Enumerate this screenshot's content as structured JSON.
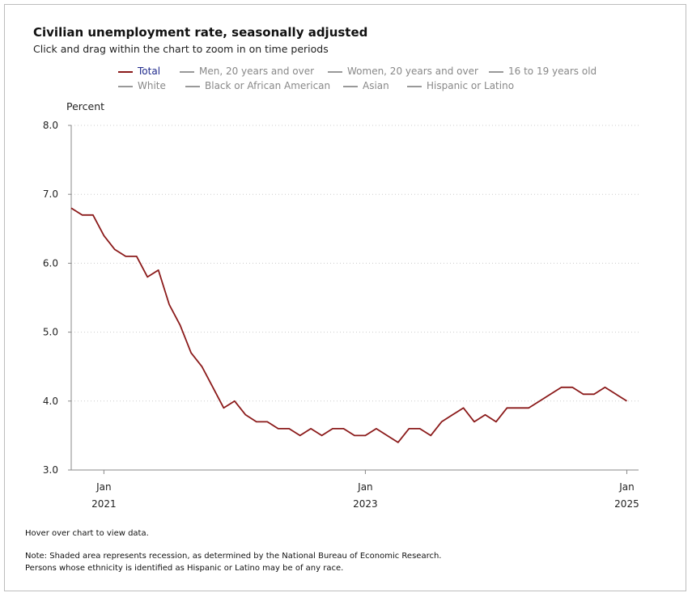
{
  "header": {
    "title": "Civilian unemployment rate, seasonally adjusted",
    "subtitle": "Click and drag within the chart to zoom in on time periods"
  },
  "legend": [
    {
      "label": "Total",
      "active": true
    },
    {
      "label": "Men, 20 years and over",
      "active": false
    },
    {
      "label": "Women, 20 years and over",
      "active": false
    },
    {
      "label": "16 to 19 years old",
      "active": false
    },
    {
      "label": "White",
      "active": false
    },
    {
      "label": "Black or African American",
      "active": false
    },
    {
      "label": "Asian",
      "active": false
    },
    {
      "label": "Hispanic or Latino",
      "active": false
    }
  ],
  "colors": {
    "series": "#8b1a1a",
    "legend_active_text": "#1f2a8c",
    "grid": "#cccccc",
    "axis": "#888888"
  },
  "footer": {
    "hover_hint": "Hover over chart to view data.",
    "note_line1": "Note: Shaded area represents recession, as determined by the National Bureau of Economic Research.",
    "note_line2": "Persons whose ethnicity is identified as Hispanic or Latino may be of any race."
  },
  "chart_data": {
    "type": "line",
    "title": "Civilian unemployment rate, seasonally adjusted",
    "ylabel": "Percent",
    "ylim": [
      3.0,
      8.0
    ],
    "yticks": [
      "8.0",
      "7.0",
      "6.0",
      "5.0",
      "4.0",
      "3.0"
    ],
    "xticks": [
      {
        "month": "Jan",
        "year": "2021",
        "index": 3
      },
      {
        "month": "Jan",
        "year": "2023",
        "index": 27
      },
      {
        "month": "Jan",
        "year": "2025",
        "index": 51
      }
    ],
    "x_start": "Oct 2020",
    "x_end": "Jan 2025",
    "grid": true,
    "series": [
      {
        "name": "Total",
        "values": [
          6.8,
          6.7,
          6.7,
          6.4,
          6.2,
          6.1,
          6.1,
          5.8,
          5.9,
          5.4,
          5.1,
          4.7,
          4.5,
          4.2,
          3.9,
          4.0,
          3.8,
          3.7,
          3.7,
          3.6,
          3.6,
          3.5,
          3.6,
          3.5,
          3.6,
          3.6,
          3.5,
          3.5,
          3.6,
          3.5,
          3.4,
          3.6,
          3.6,
          3.5,
          3.7,
          3.8,
          3.9,
          3.7,
          3.8,
          3.7,
          3.9,
          3.9,
          3.9,
          4.0,
          4.1,
          4.2,
          4.2,
          4.1,
          4.1,
          4.2,
          4.1,
          4.0
        ]
      }
    ]
  }
}
